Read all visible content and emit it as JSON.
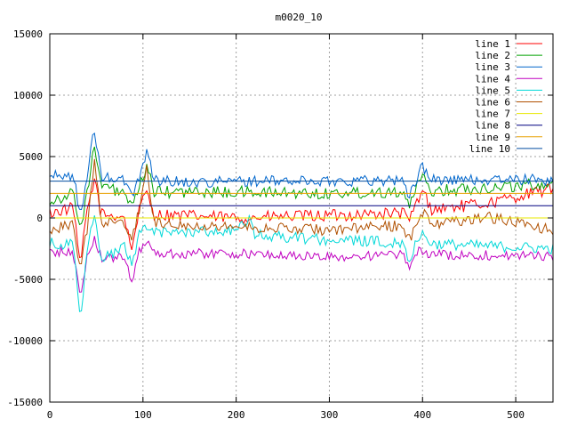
{
  "chart_data": {
    "type": "line",
    "title": "m0020_10",
    "xlabel": "",
    "ylabel": "",
    "xlim": [
      0,
      540
    ],
    "ylim": [
      -15000,
      15000
    ],
    "x_ticks": [
      0,
      100,
      200,
      300,
      400,
      500
    ],
    "y_ticks": [
      -15000,
      -10000,
      -5000,
      0,
      5000,
      10000,
      15000
    ],
    "grid": true,
    "legend_position": "top-right",
    "series": [
      {
        "name": "line 1",
        "color": "#ff0000",
        "baseline": 500,
        "noise": 500,
        "keypoints": [
          [
            0,
            400
          ],
          [
            25,
            800
          ],
          [
            33,
            -3800
          ],
          [
            40,
            600
          ],
          [
            48,
            3200
          ],
          [
            55,
            300
          ],
          [
            80,
            100
          ],
          [
            88,
            -2600
          ],
          [
            95,
            400
          ],
          [
            104,
            2200
          ],
          [
            112,
            300
          ],
          [
            200,
            0
          ],
          [
            300,
            200
          ],
          [
            380,
            400
          ],
          [
            385,
            -400
          ],
          [
            392,
            1000
          ],
          [
            400,
            2200
          ],
          [
            410,
            700
          ],
          [
            470,
            1200
          ],
          [
            540,
            2400
          ]
        ]
      },
      {
        "name": "line 2",
        "color": "#00a000",
        "baseline": 2100,
        "noise": 500,
        "keypoints": [
          [
            0,
            1400
          ],
          [
            25,
            2000
          ],
          [
            33,
            -900
          ],
          [
            40,
            2200
          ],
          [
            48,
            5800
          ],
          [
            55,
            2600
          ],
          [
            80,
            2000
          ],
          [
            88,
            800
          ],
          [
            95,
            2000
          ],
          [
            104,
            4400
          ],
          [
            112,
            2100
          ],
          [
            200,
            2100
          ],
          [
            300,
            2000
          ],
          [
            380,
            2200
          ],
          [
            385,
            800
          ],
          [
            392,
            2200
          ],
          [
            400,
            3300
          ],
          [
            410,
            2200
          ],
          [
            540,
            2800
          ]
        ]
      },
      {
        "name": "line 3",
        "color": "#0066cc",
        "baseline": 3100,
        "noise": 450,
        "keypoints": [
          [
            0,
            3400
          ],
          [
            25,
            3500
          ],
          [
            33,
            300
          ],
          [
            40,
            3000
          ],
          [
            47,
            7400
          ],
          [
            55,
            3400
          ],
          [
            80,
            3000
          ],
          [
            88,
            1900
          ],
          [
            95,
            3000
          ],
          [
            104,
            5600
          ],
          [
            112,
            3100
          ],
          [
            150,
            2900
          ],
          [
            200,
            3000
          ],
          [
            300,
            3000
          ],
          [
            380,
            3100
          ],
          [
            385,
            1400
          ],
          [
            392,
            3000
          ],
          [
            400,
            4200
          ],
          [
            410,
            3100
          ],
          [
            540,
            3100
          ]
        ]
      },
      {
        "name": "line 4",
        "color": "#c000c0",
        "baseline": -2900,
        "noise": 400,
        "keypoints": [
          [
            0,
            -2800
          ],
          [
            25,
            -2800
          ],
          [
            33,
            -6500
          ],
          [
            40,
            -3200
          ],
          [
            48,
            -1500
          ],
          [
            55,
            -3300
          ],
          [
            80,
            -3200
          ],
          [
            88,
            -5200
          ],
          [
            95,
            -2800
          ],
          [
            104,
            -1700
          ],
          [
            112,
            -2900
          ],
          [
            200,
            -2900
          ],
          [
            300,
            -3200
          ],
          [
            380,
            -3000
          ],
          [
            385,
            -4200
          ],
          [
            392,
            -2900
          ],
          [
            400,
            -2600
          ],
          [
            410,
            -3000
          ],
          [
            540,
            -3100
          ]
        ]
      },
      {
        "name": "line 5",
        "color": "#00d8d8",
        "baseline": -1600,
        "noise": 450,
        "keypoints": [
          [
            0,
            -2000
          ],
          [
            25,
            -2200
          ],
          [
            33,
            -8400
          ],
          [
            40,
            -2600
          ],
          [
            48,
            200
          ],
          [
            55,
            -3500
          ],
          [
            80,
            -2300
          ],
          [
            88,
            -3900
          ],
          [
            95,
            -1400
          ],
          [
            104,
            -700
          ],
          [
            112,
            -1200
          ],
          [
            200,
            -1000
          ],
          [
            215,
            -200
          ],
          [
            220,
            -1400
          ],
          [
            300,
            -1800
          ],
          [
            380,
            -2000
          ],
          [
            385,
            -3800
          ],
          [
            392,
            -2000
          ],
          [
            400,
            -1300
          ],
          [
            410,
            -2100
          ],
          [
            540,
            -2500
          ]
        ]
      },
      {
        "name": "line 6",
        "color": "#b05000",
        "baseline": -600,
        "noise": 450,
        "keypoints": [
          [
            0,
            -1000
          ],
          [
            25,
            -400
          ],
          [
            33,
            -4200
          ],
          [
            40,
            -900
          ],
          [
            48,
            4800
          ],
          [
            55,
            -300
          ],
          [
            80,
            -400
          ],
          [
            88,
            -1900
          ],
          [
            95,
            300
          ],
          [
            104,
            4300
          ],
          [
            112,
            -400
          ],
          [
            200,
            -700
          ],
          [
            300,
            -1000
          ],
          [
            380,
            -600
          ],
          [
            385,
            -1900
          ],
          [
            392,
            -700
          ],
          [
            400,
            500
          ],
          [
            410,
            -500
          ],
          [
            470,
            100
          ],
          [
            540,
            -1000
          ]
        ]
      },
      {
        "name": "line 7",
        "color": "#e8e800",
        "baseline": 0,
        "noise": 0,
        "keypoints": [
          [
            0,
            0
          ],
          [
            540,
            0
          ]
        ]
      },
      {
        "name": "line 8",
        "color": "#000080",
        "baseline": 1000,
        "noise": 0,
        "keypoints": [
          [
            0,
            1000
          ],
          [
            540,
            1000
          ]
        ]
      },
      {
        "name": "line 9",
        "color": "#e8a000",
        "baseline": 2000,
        "noise": 0,
        "keypoints": [
          [
            0,
            2000
          ],
          [
            540,
            2000
          ]
        ]
      },
      {
        "name": "line 10",
        "color": "#004ca0",
        "baseline": 3000,
        "noise": 0,
        "keypoints": [
          [
            0,
            3000
          ],
          [
            540,
            3000
          ]
        ]
      }
    ]
  }
}
